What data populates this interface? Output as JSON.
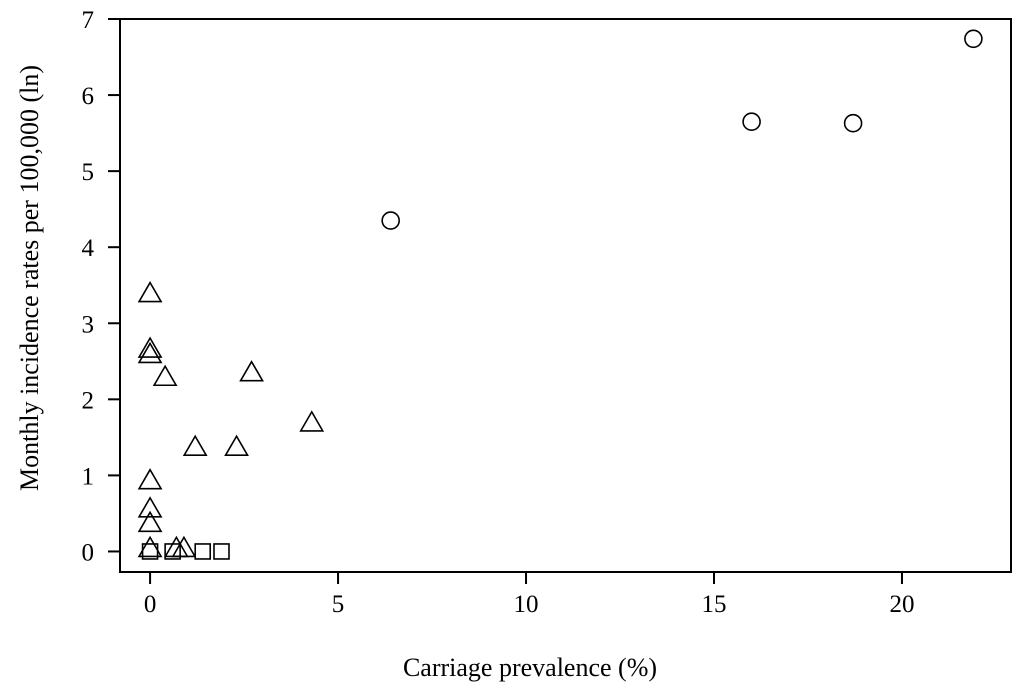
{
  "chart_data": {
    "type": "scatter",
    "title": "",
    "xlabel": "Carriage prevalence (%)",
    "ylabel": "Monthly incidence rates per 100,000 (ln)",
    "xlim": [
      -0.8,
      22.9
    ],
    "ylim": [
      -0.27,
      7.0
    ],
    "xticks": [
      0,
      5,
      10,
      15,
      20
    ],
    "yticks": [
      0,
      1,
      2,
      3,
      4,
      5,
      6,
      7
    ],
    "grid": false,
    "legend": "none",
    "series": [
      {
        "marker": "circle",
        "points": [
          {
            "x": 6.4,
            "y": 4.35
          },
          {
            "x": 16.0,
            "y": 5.65
          },
          {
            "x": 18.7,
            "y": 5.63
          },
          {
            "x": 21.9,
            "y": 6.74
          }
        ]
      },
      {
        "marker": "triangle",
        "points": [
          {
            "x": 0.0,
            "y": 3.38
          },
          {
            "x": 0.0,
            "y": 2.65
          },
          {
            "x": 0.0,
            "y": 2.58
          },
          {
            "x": 0.4,
            "y": 2.28
          },
          {
            "x": 2.7,
            "y": 2.34
          },
          {
            "x": 4.3,
            "y": 1.68
          },
          {
            "x": 1.2,
            "y": 1.36
          },
          {
            "x": 2.3,
            "y": 1.36
          },
          {
            "x": 0.0,
            "y": 0.92
          },
          {
            "x": 0.0,
            "y": 0.55
          },
          {
            "x": 0.0,
            "y": 0.36
          },
          {
            "x": 0.0,
            "y": 0.03
          },
          {
            "x": 0.7,
            "y": 0.03
          },
          {
            "x": 0.9,
            "y": 0.03
          }
        ]
      },
      {
        "marker": "square",
        "points": [
          {
            "x": 0.0,
            "y": 0.0
          },
          {
            "x": 0.6,
            "y": 0.0
          },
          {
            "x": 1.4,
            "y": 0.0
          },
          {
            "x": 1.9,
            "y": 0.0
          }
        ]
      }
    ]
  }
}
